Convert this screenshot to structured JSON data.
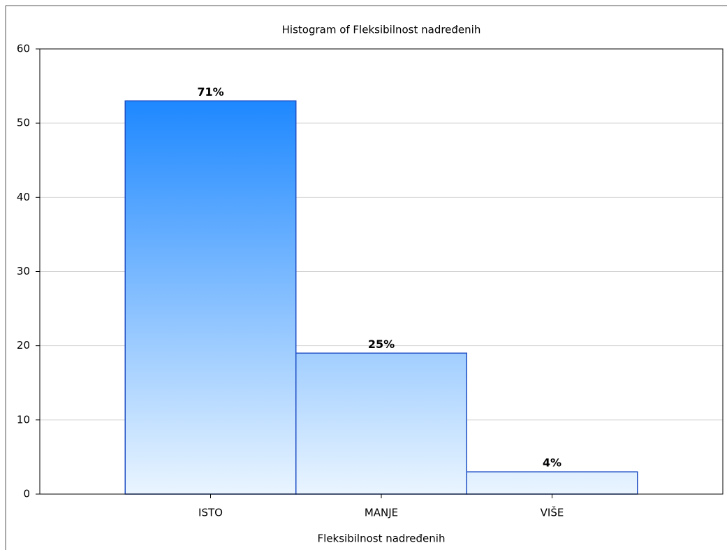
{
  "chart_data": {
    "type": "bar",
    "title": "Histogram of Fleksibilnost nadređenih",
    "x_label": "Fleksibilnost nadređenih",
    "categories": [
      "ISTO",
      "MANJE",
      "VIŠE"
    ],
    "values": [
      53,
      19,
      3
    ],
    "annotations": [
      "71%",
      "25%",
      "4%"
    ],
    "color": "#1e88ff",
    "ylim": [
      0,
      60
    ],
    "yticks": [
      0,
      10,
      20,
      30,
      40,
      50,
      60
    ],
    "grid": true
  }
}
